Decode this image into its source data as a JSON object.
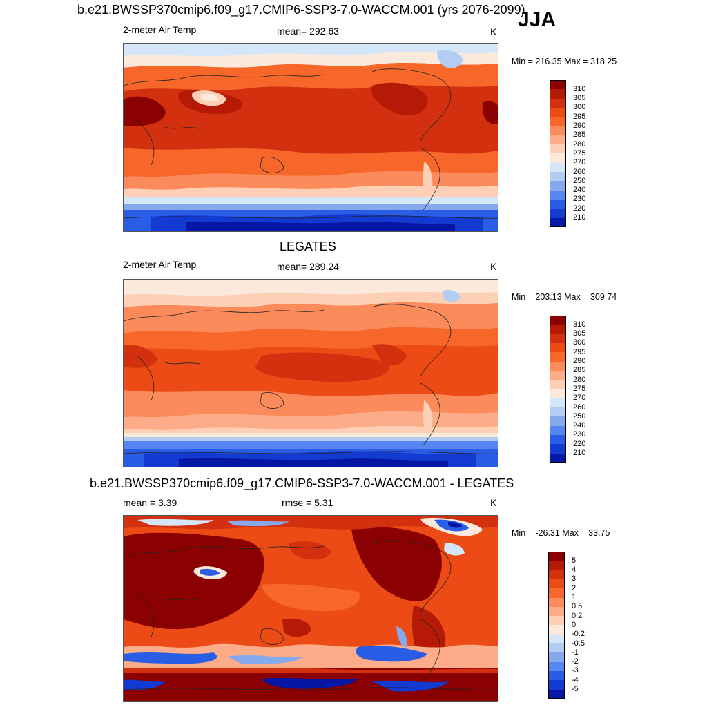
{
  "season": "JJA",
  "panels": [
    {
      "title": "b.e21.BWSSP370cmip6.f09_g17.CMIP6-SSP3-7.0-WACCM.001 (yrs 2076-2099)",
      "left": "2-meter Air Temp",
      "center": "mean= 292.63",
      "units": "K",
      "minmax": "Min = 216.35 Max = 318.25",
      "colorbar": {
        "labels": [
          "310",
          "305",
          "300",
          "295",
          "290",
          "285",
          "280",
          "275",
          "270",
          "260",
          "250",
          "240",
          "230",
          "220",
          "210"
        ],
        "colors": [
          "#8b0000",
          "#b41a06",
          "#d2300e",
          "#ec4b15",
          "#f7672a",
          "#fb8b5a",
          "#fcac88",
          "#fdd0b6",
          "#fbeadb",
          "#d4e6f7",
          "#b3cdf2",
          "#86a9ee",
          "#5687f0",
          "#2a5de6",
          "#133bd1",
          "#0618a3"
        ]
      }
    },
    {
      "title": "LEGATES",
      "left": "2-meter Air Temp",
      "center": "mean= 289.24",
      "units": "K",
      "minmax": "Min = 203.13 Max = 309.74",
      "colorbar": {
        "labels": [
          "310",
          "305",
          "300",
          "295",
          "290",
          "285",
          "280",
          "275",
          "270",
          "260",
          "250",
          "240",
          "230",
          "220",
          "210"
        ],
        "colors": [
          "#8b0000",
          "#b41a06",
          "#d2300e",
          "#ec4b15",
          "#f7672a",
          "#fb8b5a",
          "#fcac88",
          "#fdd0b6",
          "#fbeadb",
          "#d4e6f7",
          "#b3cdf2",
          "#86a9ee",
          "#5687f0",
          "#2a5de6",
          "#133bd1",
          "#0618a3"
        ]
      }
    },
    {
      "title": "b.e21.BWSSP370cmip6.f09_g17.CMIP6-SSP3-7.0-WACCM.001 - LEGATES",
      "left": "mean =   3.39",
      "center": "rmse =   5.31",
      "units": "K",
      "minmax": "Min = -26.31 Max =  33.75",
      "colorbar": {
        "labels": [
          "5",
          "4",
          "3",
          "2",
          "1",
          "0.5",
          "0.2",
          "0",
          "-0.2",
          "-0.5",
          "-1",
          "-2",
          "-3",
          "-4",
          "-5"
        ],
        "colors": [
          "#8b0000",
          "#b41a06",
          "#d2300e",
          "#ec4b15",
          "#f7672a",
          "#fb8b5a",
          "#fcac88",
          "#fdd0b6",
          "#fbeadb",
          "#d4e6f7",
          "#b3cdf2",
          "#86a9ee",
          "#5687f0",
          "#2a5de6",
          "#133bd1",
          "#0618a3"
        ]
      }
    }
  ]
}
